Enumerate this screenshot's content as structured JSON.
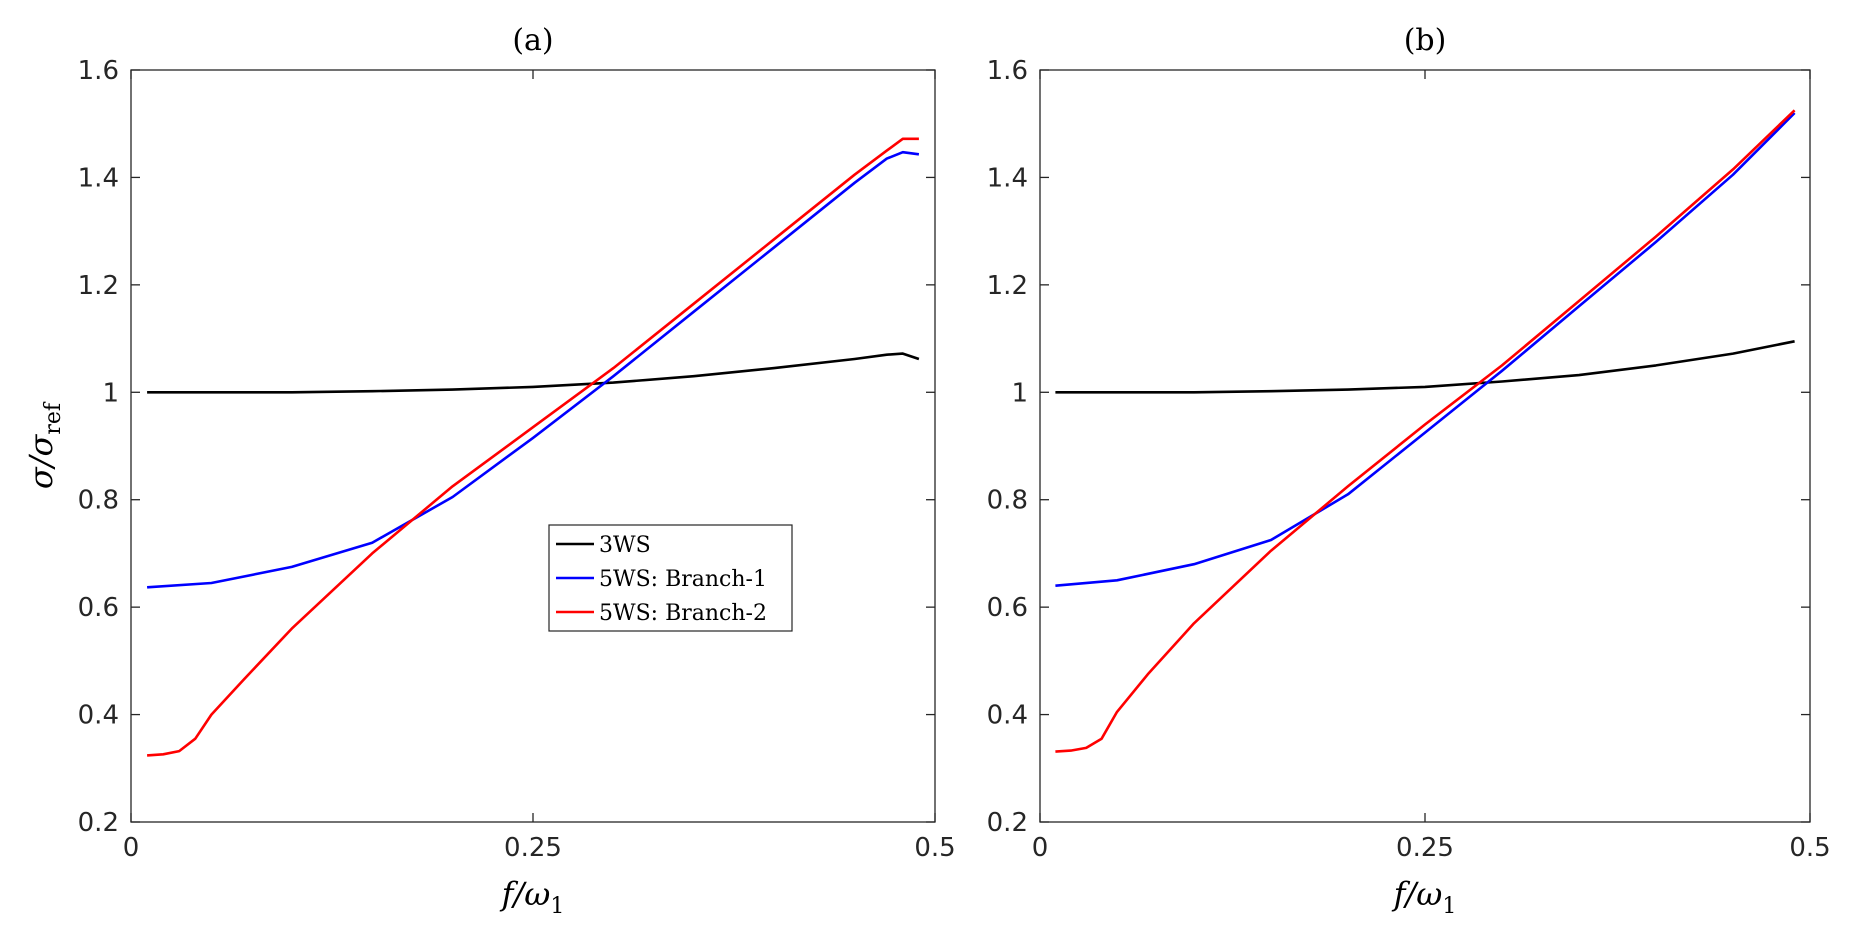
{
  "figure": {
    "chart_data": [
      {
        "type": "line",
        "panel": "(a)",
        "title": "(a)",
        "xlabel": {
          "main": "f/ω",
          "sub": "1"
        },
        "ylabel": {
          "main": "σ/σ",
          "sub": "ref"
        },
        "xlim": [
          0,
          0.5
        ],
        "ylim": [
          0.2,
          1.6
        ],
        "xticks": [
          0,
          0.25,
          0.5
        ],
        "xtick_labels": [
          "0",
          "0.25",
          "0.5"
        ],
        "yticks": [
          0.2,
          0.4,
          0.6,
          0.8,
          1.0,
          1.2,
          1.4,
          1.6
        ],
        "ytick_labels": [
          "0.2",
          "0.4",
          "0.6",
          "0.8",
          "1",
          "1.2",
          "1.4",
          "1.6"
        ],
        "grid": false,
        "legend": {
          "placement": "center",
          "entries": [
            "3WS",
            "5WS: Branch-1",
            "5WS: Branch-2"
          ]
        },
        "series": [
          {
            "name": "3WS",
            "color": "#000000",
            "x": [
              0.01,
              0.05,
              0.1,
              0.15,
              0.2,
              0.25,
              0.3,
              0.35,
              0.4,
              0.45,
              0.47,
              0.48,
              0.49
            ],
            "y": [
              1.0,
              1.0,
              1.0,
              1.002,
              1.005,
              1.01,
              1.018,
              1.03,
              1.045,
              1.062,
              1.07,
              1.072,
              1.062
            ]
          },
          {
            "name": "5WS: Branch-1",
            "color": "#0000ff",
            "x": [
              0.01,
              0.05,
              0.1,
              0.15,
              0.2,
              0.25,
              0.3,
              0.35,
              0.4,
              0.45,
              0.47,
              0.48,
              0.49
            ],
            "y": [
              0.637,
              0.645,
              0.675,
              0.72,
              0.805,
              0.915,
              1.03,
              1.15,
              1.27,
              1.39,
              1.435,
              1.447,
              1.443
            ]
          },
          {
            "name": "5WS: Branch-2",
            "color": "#ff0000",
            "x": [
              0.01,
              0.02,
              0.03,
              0.04,
              0.05,
              0.07,
              0.1,
              0.15,
              0.2,
              0.25,
              0.3,
              0.35,
              0.4,
              0.45,
              0.47,
              0.48,
              0.49
            ],
            "y": [
              0.324,
              0.326,
              0.332,
              0.355,
              0.4,
              0.465,
              0.56,
              0.7,
              0.825,
              0.935,
              1.045,
              1.165,
              1.285,
              1.405,
              1.45,
              1.472,
              1.472
            ]
          }
        ]
      },
      {
        "type": "line",
        "panel": "(b)",
        "title": "(b)",
        "xlabel": {
          "main": "f/ω",
          "sub": "1"
        },
        "ylabel": {
          "main": "",
          "sub": ""
        },
        "xlim": [
          0,
          0.5
        ],
        "ylim": [
          0.2,
          1.6
        ],
        "xticks": [
          0,
          0.25,
          0.5
        ],
        "xtick_labels": [
          "0",
          "0.25",
          "0.5"
        ],
        "yticks": [
          0.2,
          0.4,
          0.6,
          0.8,
          1.0,
          1.2,
          1.4,
          1.6
        ],
        "ytick_labels": [
          "0.2",
          "0.4",
          "0.6",
          "0.8",
          "1",
          "1.2",
          "1.4",
          "1.6"
        ],
        "grid": false,
        "legend": null,
        "series": [
          {
            "name": "3WS",
            "color": "#000000",
            "x": [
              0.01,
              0.05,
              0.1,
              0.15,
              0.2,
              0.25,
              0.3,
              0.35,
              0.4,
              0.45,
              0.49
            ],
            "y": [
              1.0,
              1.0,
              1.0,
              1.002,
              1.005,
              1.01,
              1.02,
              1.032,
              1.05,
              1.072,
              1.095
            ]
          },
          {
            "name": "5WS: Branch-1",
            "color": "#0000ff",
            "x": [
              0.01,
              0.05,
              0.1,
              0.15,
              0.2,
              0.25,
              0.3,
              0.35,
              0.4,
              0.45,
              0.49
            ],
            "y": [
              0.64,
              0.65,
              0.68,
              0.725,
              0.81,
              0.925,
              1.04,
              1.16,
              1.28,
              1.405,
              1.52
            ]
          },
          {
            "name": "5WS: Branch-2",
            "color": "#ff0000",
            "x": [
              0.01,
              0.02,
              0.03,
              0.04,
              0.05,
              0.07,
              0.1,
              0.15,
              0.2,
              0.25,
              0.3,
              0.35,
              0.4,
              0.45,
              0.49
            ],
            "y": [
              0.331,
              0.333,
              0.338,
              0.355,
              0.405,
              0.475,
              0.57,
              0.705,
              0.825,
              0.94,
              1.05,
              1.17,
              1.29,
              1.415,
              1.525
            ]
          }
        ]
      }
    ]
  }
}
